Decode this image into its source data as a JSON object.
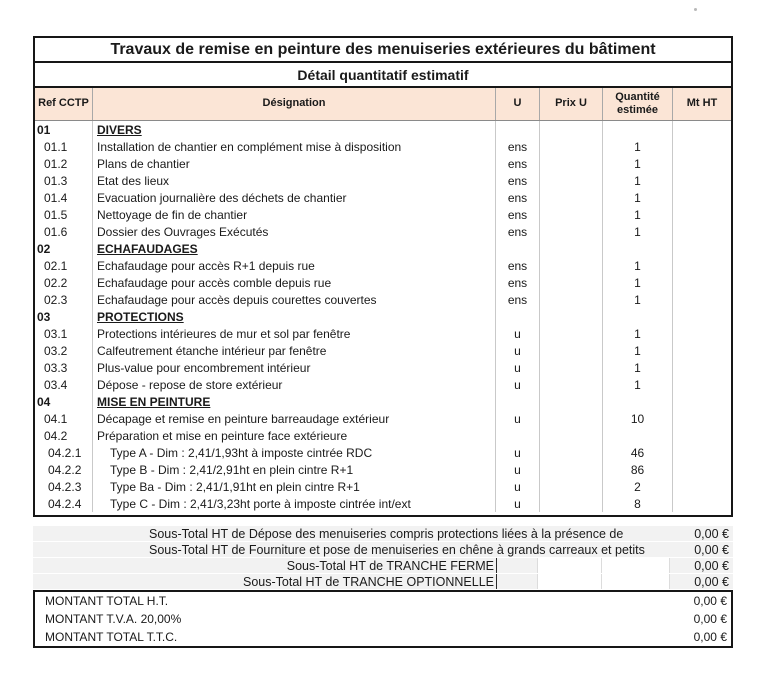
{
  "document": {
    "title": "Travaux de remise en peinture des menuiseries extérieures du bâtiment",
    "subtitle": "Détail quantitatif estimatif"
  },
  "table": {
    "columns": [
      "Ref CCTP",
      "Désignation",
      "U",
      "Prix U",
      "Quantité estimée",
      "Mt HT"
    ],
    "rows": [
      {
        "ref": "01",
        "designation": "DIVERS",
        "unit": "",
        "unit_price": "",
        "quantity": "",
        "amount": "",
        "section": true,
        "indent": 0
      },
      {
        "ref": "01.1",
        "designation": "Installation de chantier en complément mise à disposition",
        "unit": "ens",
        "unit_price": "",
        "quantity": "1",
        "amount": "",
        "section": false,
        "indent": 1
      },
      {
        "ref": "01.2",
        "designation": "Plans de chantier",
        "unit": "ens",
        "unit_price": "",
        "quantity": "1",
        "amount": "",
        "section": false,
        "indent": 1
      },
      {
        "ref": "01.3",
        "designation": "Etat des lieux",
        "unit": "ens",
        "unit_price": "",
        "quantity": "1",
        "amount": "",
        "section": false,
        "indent": 1
      },
      {
        "ref": "01.4",
        "designation": "Evacuation journalière des déchets de chantier",
        "unit": "ens",
        "unit_price": "",
        "quantity": "1",
        "amount": "",
        "section": false,
        "indent": 1
      },
      {
        "ref": "01.5",
        "designation": "Nettoyage de fin de chantier",
        "unit": "ens",
        "unit_price": "",
        "quantity": "1",
        "amount": "",
        "section": false,
        "indent": 1
      },
      {
        "ref": "01.6",
        "designation": "Dossier des Ouvrages Exécutés",
        "unit": "ens",
        "unit_price": "",
        "quantity": "1",
        "amount": "",
        "section": false,
        "indent": 1
      },
      {
        "ref": "02",
        "designation": "ECHAFAUDAGES",
        "unit": "",
        "unit_price": "",
        "quantity": "",
        "amount": "",
        "section": true,
        "indent": 0
      },
      {
        "ref": "02.1",
        "designation": "Echafaudage pour accès R+1 depuis rue",
        "unit": "ens",
        "unit_price": "",
        "quantity": "1",
        "amount": "",
        "section": false,
        "indent": 1
      },
      {
        "ref": "02.2",
        "designation": "Echafaudage pour accès comble depuis rue",
        "unit": "ens",
        "unit_price": "",
        "quantity": "1",
        "amount": "",
        "section": false,
        "indent": 1
      },
      {
        "ref": "02.3",
        "designation": "Echafaudage pour accès depuis courettes couvertes",
        "unit": "ens",
        "unit_price": "",
        "quantity": "1",
        "amount": "",
        "section": false,
        "indent": 1
      },
      {
        "ref": "03",
        "designation": "PROTECTIONS",
        "unit": "",
        "unit_price": "",
        "quantity": "",
        "amount": "",
        "section": true,
        "indent": 0
      },
      {
        "ref": "03.1",
        "designation": "Protections intérieures de mur et sol par fenêtre",
        "unit": "u",
        "unit_price": "",
        "quantity": "1",
        "amount": "",
        "section": false,
        "indent": 1
      },
      {
        "ref": "03.2",
        "designation": "Calfeutrement étanche intérieur par fenêtre",
        "unit": "u",
        "unit_price": "",
        "quantity": "1",
        "amount": "",
        "section": false,
        "indent": 1
      },
      {
        "ref": "03.3",
        "designation": "Plus-value pour encombrement intérieur",
        "unit": "u",
        "unit_price": "",
        "quantity": "1",
        "amount": "",
        "section": false,
        "indent": 1
      },
      {
        "ref": "03.4",
        "designation": "Dépose - repose de store extérieur",
        "unit": "u",
        "unit_price": "",
        "quantity": "1",
        "amount": "",
        "section": false,
        "indent": 1
      },
      {
        "ref": "04",
        "designation": "MISE EN PEINTURE",
        "unit": "",
        "unit_price": "",
        "quantity": "",
        "amount": "",
        "section": true,
        "indent": 0
      },
      {
        "ref": "04.1",
        "designation": "Décapage et remise en peinture barreaudage extérieur",
        "unit": "u",
        "unit_price": "",
        "quantity": "10",
        "amount": "",
        "section": false,
        "indent": 1
      },
      {
        "ref": "04.2",
        "designation": "Préparation et mise en peinture face extérieure",
        "unit": "",
        "unit_price": "",
        "quantity": "",
        "amount": "",
        "section": false,
        "indent": 1
      },
      {
        "ref": "04.2.1",
        "designation": "Type A - Dim : 2,41/1,93ht à imposte cintrée RDC",
        "unit": "u",
        "unit_price": "",
        "quantity": "46",
        "amount": "",
        "section": false,
        "indent": 2
      },
      {
        "ref": "04.2.2",
        "designation": "Type B - Dim : 2,41/2,91ht en plein cintre R+1",
        "unit": "u",
        "unit_price": "",
        "quantity": "86",
        "amount": "",
        "section": false,
        "indent": 2
      },
      {
        "ref": "04.2.3",
        "designation": "Type Ba - Dim : 2,41/1,91ht en plein cintre R+1",
        "unit": "u",
        "unit_price": "",
        "quantity": "2",
        "amount": "",
        "section": false,
        "indent": 2
      },
      {
        "ref": "04.2.4",
        "designation": "Type C - Dim : 2,41/3,23ht porte à imposte cintrée int/ext",
        "unit": "u",
        "unit_price": "",
        "quantity": "8",
        "amount": "",
        "section": false,
        "indent": 2
      }
    ],
    "subtotals": [
      {
        "label": "Sous-Total HT de Dépose des menuiseries compris protections liées à la présence de",
        "amount": "0,00 €",
        "label_align": "left",
        "empty_cells": false
      },
      {
        "label": "Sous-Total HT de Fourniture et pose de menuiseries en chêne à grands carreaux et petits",
        "amount": "0,00 €",
        "label_align": "left",
        "empty_cells": false
      },
      {
        "label": "Sous-Total HT de TRANCHE FERME",
        "amount": "0,00 €",
        "label_align": "right",
        "empty_cells": true
      },
      {
        "label": "Sous-Total HT de TRANCHE OPTIONNELLE",
        "amount": "0,00 €",
        "label_align": "right",
        "empty_cells": true
      }
    ],
    "totals": [
      {
        "label": "MONTANT TOTAL H.T.",
        "amount": "0,00 €"
      },
      {
        "label": "MONTANT T.V.A. 20,00%",
        "amount": "0,00 €"
      },
      {
        "label": "MONTANT TOTAL T.T.C.",
        "amount": "0,00 €"
      }
    ]
  },
  "colors": {
    "header_bg": "#fbe5d6",
    "subtotal_bg": "#f2f2f2",
    "grid_line": "#c9c9c9",
    "border": "#161616"
  }
}
